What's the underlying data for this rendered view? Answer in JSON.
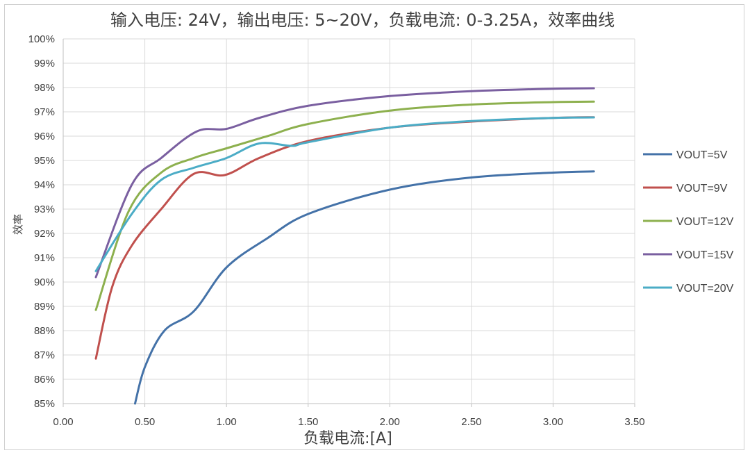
{
  "chart_data": {
    "type": "line",
    "title": "输入电压: 24V，输出电压: 5~20V，负载电流: 0-3.25A，效率曲线",
    "xlabel": "负载电流:[A]",
    "ylabel": "效率",
    "xlim": [
      0,
      3.5
    ],
    "ylim": [
      85,
      100
    ],
    "x_ticks": [
      "0.00",
      "0.50",
      "1.00",
      "1.50",
      "2.00",
      "2.50",
      "3.00",
      "3.50"
    ],
    "y_ticks": [
      "85%",
      "86%",
      "87%",
      "88%",
      "89%",
      "90%",
      "91%",
      "92%",
      "93%",
      "94%",
      "95%",
      "96%",
      "97%",
      "98%",
      "99%",
      "100%"
    ],
    "grid": true,
    "legend_position": "right",
    "series": [
      {
        "name": "VOUT=5V",
        "color": "#4472a8",
        "points": [
          [
            0.44,
            85.0
          ],
          [
            0.5,
            86.5
          ],
          [
            0.62,
            88.0
          ],
          [
            0.8,
            88.8
          ],
          [
            1.0,
            90.6
          ],
          [
            1.25,
            91.8
          ],
          [
            1.5,
            92.8
          ],
          [
            2.0,
            93.8
          ],
          [
            2.5,
            94.3
          ],
          [
            3.0,
            94.5
          ],
          [
            3.25,
            94.55
          ]
        ]
      },
      {
        "name": "VOUT=9V",
        "color": "#c0504d",
        "points": [
          [
            0.2,
            86.85
          ],
          [
            0.3,
            89.8
          ],
          [
            0.42,
            91.5
          ],
          [
            0.6,
            93.0
          ],
          [
            0.8,
            94.45
          ],
          [
            0.99,
            94.4
          ],
          [
            1.2,
            95.1
          ],
          [
            1.5,
            95.8
          ],
          [
            2.0,
            96.35
          ],
          [
            2.5,
            96.6
          ],
          [
            3.0,
            96.75
          ],
          [
            3.25,
            96.78
          ]
        ]
      },
      {
        "name": "VOUT=12V",
        "color": "#8db04e",
        "points": [
          [
            0.2,
            88.85
          ],
          [
            0.4,
            92.9
          ],
          [
            0.6,
            94.5
          ],
          [
            0.8,
            95.1
          ],
          [
            1.0,
            95.5
          ],
          [
            1.25,
            96.0
          ],
          [
            1.5,
            96.5
          ],
          [
            2.0,
            97.05
          ],
          [
            2.5,
            97.3
          ],
          [
            3.0,
            97.4
          ],
          [
            3.25,
            97.42
          ]
        ]
      },
      {
        "name": "VOUT=15V",
        "color": "#7a5fa0",
        "points": [
          [
            0.2,
            90.2
          ],
          [
            0.42,
            94.0
          ],
          [
            0.6,
            95.1
          ],
          [
            0.82,
            96.2
          ],
          [
            1.0,
            96.3
          ],
          [
            1.2,
            96.75
          ],
          [
            1.5,
            97.25
          ],
          [
            2.0,
            97.65
          ],
          [
            2.5,
            97.85
          ],
          [
            3.0,
            97.95
          ],
          [
            3.25,
            97.97
          ]
        ]
      },
      {
        "name": "VOUT=20V",
        "color": "#4bacc6",
        "points": [
          [
            0.2,
            90.45
          ],
          [
            0.42,
            92.8
          ],
          [
            0.6,
            94.2
          ],
          [
            0.8,
            94.7
          ],
          [
            1.0,
            95.1
          ],
          [
            1.2,
            95.7
          ],
          [
            1.4,
            95.6
          ],
          [
            1.5,
            95.75
          ],
          [
            2.0,
            96.35
          ],
          [
            2.5,
            96.62
          ],
          [
            3.0,
            96.75
          ],
          [
            3.25,
            96.77
          ]
        ]
      }
    ]
  }
}
